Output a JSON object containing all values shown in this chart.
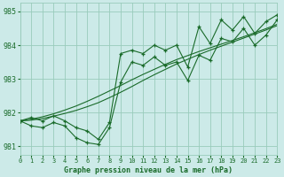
{
  "xlabel": "Graphe pression niveau de la mer (hPa)",
  "background_color": "#cceae8",
  "grid_color": "#99ccbb",
  "line_color": "#1a6b2a",
  "xlim": [
    0,
    23
  ],
  "ylim": [
    980.75,
    985.25
  ],
  "yticks": [
    981,
    982,
    983,
    984,
    985
  ],
  "xticks": [
    0,
    1,
    2,
    3,
    4,
    5,
    6,
    7,
    8,
    9,
    10,
    11,
    12,
    13,
    14,
    15,
    16,
    17,
    18,
    19,
    20,
    21,
    22,
    23
  ],
  "series1": [
    981.75,
    981.85,
    981.75,
    981.9,
    981.75,
    981.55,
    981.45,
    981.2,
    981.7,
    983.75,
    983.85,
    983.75,
    984.0,
    983.85,
    984.0,
    983.35,
    984.55,
    984.05,
    984.75,
    984.45,
    984.85,
    984.35,
    984.7,
    984.9
  ],
  "series2": [
    981.75,
    981.6,
    981.55,
    981.7,
    981.6,
    981.25,
    981.1,
    981.05,
    981.55,
    982.9,
    983.5,
    983.4,
    983.65,
    983.4,
    983.5,
    982.95,
    983.7,
    983.55,
    984.2,
    984.1,
    984.5,
    984.0,
    984.3,
    984.75
  ],
  "smooth1": [
    981.75,
    981.77,
    981.82,
    981.89,
    981.97,
    982.06,
    982.17,
    982.29,
    982.44,
    982.6,
    982.77,
    982.95,
    983.12,
    983.28,
    983.44,
    983.58,
    983.72,
    983.85,
    983.97,
    984.09,
    984.21,
    984.33,
    984.45,
    984.58
  ],
  "smooth2": [
    981.75,
    981.8,
    981.87,
    981.96,
    982.07,
    982.19,
    982.33,
    982.48,
    982.64,
    982.8,
    982.97,
    983.13,
    983.28,
    983.43,
    983.57,
    983.69,
    983.81,
    983.92,
    984.03,
    984.14,
    984.25,
    984.37,
    984.49,
    984.62
  ]
}
